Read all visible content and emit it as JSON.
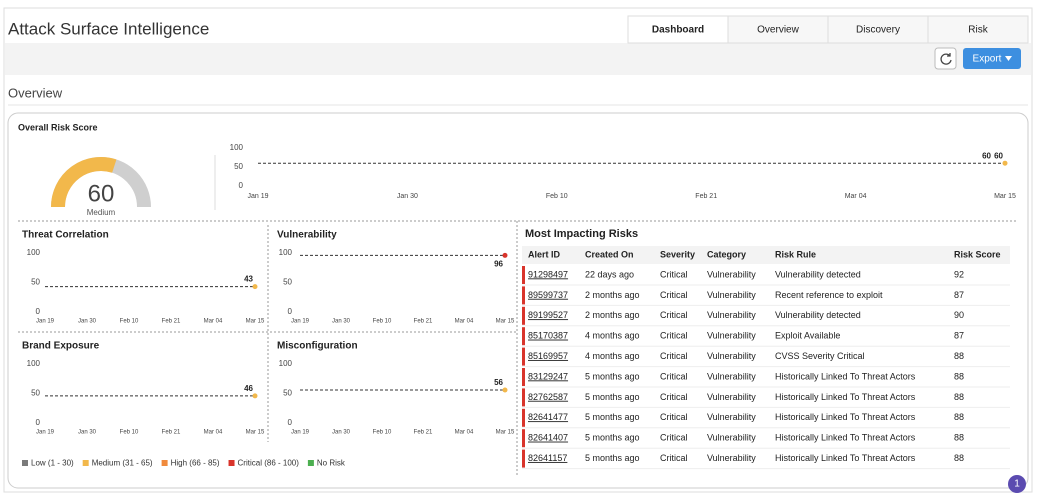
{
  "header": {
    "title": "Attack Surface Intelligence",
    "tabs": [
      "Dashboard",
      "Overview",
      "Discovery",
      "Risk"
    ],
    "export": "Export"
  },
  "section": "Overview",
  "card_title": "Overall Risk Score",
  "gauge": {
    "value": 60,
    "label": "Medium",
    "ylim": [
      0,
      100
    ],
    "color": "#f2b84b",
    "track_color": "#cfcfcf"
  },
  "chart_data": [
    {
      "type": "line",
      "x": [
        "Jan 19",
        "Jan 30",
        "Feb 10",
        "Feb 21",
        "Mar 04",
        "Mar 15"
      ],
      "series": [
        {
          "color": "#333333",
          "point_color": "#f2b84b",
          "values": [
            60,
            60,
            60,
            60,
            60,
            60
          ]
        }
      ],
      "ylim": [
        0,
        100
      ],
      "yticks": [
        0,
        50,
        100
      ]
    },
    {
      "type": "line",
      "title": "Threat Correlation",
      "x": [
        "Jan 19",
        "Jan 30",
        "Feb 10",
        "Feb 21",
        "Mar 04",
        "Mar 15"
      ],
      "series": [
        {
          "color": "#333333",
          "point_color": "#f2b84b",
          "values": [
            43,
            43,
            43,
            43,
            43,
            43
          ]
        }
      ],
      "ylim": [
        0,
        100
      ],
      "yticks": [
        0,
        50,
        100
      ]
    },
    {
      "type": "line",
      "title": "Vulnerability",
      "x": [
        "Jan 19",
        "Jan 30",
        "Feb 10",
        "Feb 21",
        "Mar 04",
        "Mar 15"
      ],
      "series": [
        {
          "color": "#333333",
          "point_color": "#d9342b",
          "values": [
            96,
            96,
            96,
            96,
            96,
            96
          ]
        }
      ],
      "ylim": [
        0,
        100
      ],
      "yticks": [
        0,
        50,
        100
      ]
    },
    {
      "type": "line",
      "title": "Brand Exposure",
      "x": [
        "Jan 19",
        "Jan 30",
        "Feb 10",
        "Feb 21",
        "Mar 04",
        "Mar 15"
      ],
      "series": [
        {
          "color": "#333333",
          "point_color": "#f2b84b",
          "values": [
            46,
            46,
            46,
            46,
            46,
            46
          ]
        }
      ],
      "ylim": [
        0,
        100
      ],
      "yticks": [
        0,
        50,
        100
      ]
    },
    {
      "type": "line",
      "title": "Misconfiguration",
      "x": [
        "Jan 19",
        "Jan 30",
        "Feb 10",
        "Feb 21",
        "Mar 04",
        "Mar 15"
      ],
      "series": [
        {
          "color": "#333333",
          "point_color": "#f2b84b",
          "values": [
            56,
            56,
            56,
            56,
            56,
            56
          ]
        }
      ],
      "ylim": [
        0,
        100
      ],
      "yticks": [
        0,
        50,
        100
      ]
    }
  ],
  "legend": [
    {
      "name": "Low (1 - 30)",
      "color": "#7a7a7a"
    },
    {
      "name": "Medium (31 - 65)",
      "color": "#f2b84b"
    },
    {
      "name": "High (66 - 85)",
      "color": "#f08a3c"
    },
    {
      "name": "Critical (86 - 100)",
      "color": "#d9342b"
    },
    {
      "name": "No Risk",
      "color": "#4caf50"
    }
  ],
  "table": {
    "title": "Most Impacting Risks",
    "columns": [
      "Alert ID",
      "Created On",
      "Severity",
      "Category",
      "Risk Rule",
      "Risk Score"
    ],
    "rows": [
      [
        "91298497",
        "22 days ago",
        "Critical",
        "Vulnerability",
        "Vulnerability detected",
        "92"
      ],
      [
        "89599737",
        "2 months ago",
        "Critical",
        "Vulnerability",
        "Recent reference to exploit",
        "87"
      ],
      [
        "89199527",
        "2 months ago",
        "Critical",
        "Vulnerability",
        "Vulnerability detected",
        "90"
      ],
      [
        "85170387",
        "4 months ago",
        "Critical",
        "Vulnerability",
        "Exploit Available",
        "87"
      ],
      [
        "85169957",
        "4 months ago",
        "Critical",
        "Vulnerability",
        "CVSS Severity Critical",
        "88"
      ],
      [
        "83129247",
        "5 months ago",
        "Critical",
        "Vulnerability",
        "Historically Linked To Threat Actors",
        "88"
      ],
      [
        "82762587",
        "5 months ago",
        "Critical",
        "Vulnerability",
        "Historically Linked To Threat Actors",
        "88"
      ],
      [
        "82641477",
        "5 months ago",
        "Critical",
        "Vulnerability",
        "Historically Linked To Threat Actors",
        "88"
      ],
      [
        "82641407",
        "5 months ago",
        "Critical",
        "Vulnerability",
        "Historically Linked To Threat Actors",
        "88"
      ],
      [
        "82641157",
        "5 months ago",
        "Critical",
        "Vulnerability",
        "Historically Linked To Threat Actors",
        "88"
      ]
    ]
  },
  "badge": "1"
}
